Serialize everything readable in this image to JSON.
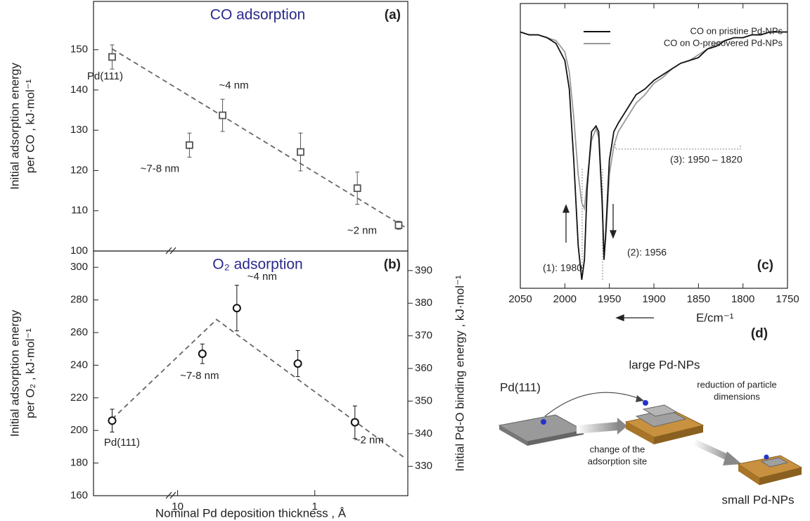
{
  "chart_data": [
    {
      "type": "scatter",
      "panel_label": "(a)",
      "title": "CO adsorption",
      "ylabel": [
        "Initial adsorption energy",
        "per CO , kJ·mol⁻¹"
      ],
      "x": [
        30,
        8.2,
        4.7,
        1.27,
        0.49,
        0.245
      ],
      "values": [
        148.2,
        126.3,
        133.7,
        124.6,
        115.6,
        106.4
      ],
      "errors": [
        3,
        3,
        4,
        4.7,
        4,
        1
      ],
      "marker": "square",
      "color": "#555555",
      "point_labels": [
        "Pd(111)",
        "~7-8 nm",
        "~4 nm",
        null,
        null,
        "~2 nm"
      ],
      "fit": {
        "x": [
          30,
          0.21
        ],
        "values": [
          150.2,
          105.5
        ]
      },
      "log_x": true,
      "xlim": [
        41,
        0.21
      ],
      "ylim": [
        100,
        162
      ],
      "yticks": [
        100,
        110,
        120,
        130,
        140,
        150
      ]
    },
    {
      "type": "scatter",
      "panel_label": "(b)",
      "title": "O₂ adsorption",
      "ylabel": [
        "Initial adsorption energy",
        "per O₂ , kJ·mol⁻¹"
      ],
      "y2label": "Initial Pd-O binding energy , kJ·mol⁻¹",
      "xlabel": "Nominal Pd deposition thickness , Å",
      "x": [
        30,
        6.6,
        3.7,
        1.33,
        0.51
      ],
      "values": [
        206,
        247,
        275,
        241,
        205
      ],
      "errors": [
        7,
        6,
        14,
        8,
        10
      ],
      "marker": "circle",
      "color": "#111111",
      "point_labels": [
        "Pd(111)",
        "~7-8 nm",
        "~4 nm",
        null,
        "~2 nm"
      ],
      "fit": {
        "x": [
          30,
          5.2,
          0.22
        ],
        "values": [
          207,
          268,
          183
        ]
      },
      "log_x": true,
      "xlim": [
        41,
        0.21
      ],
      "xticks": [
        10,
        1
      ],
      "ylim": [
        160,
        310
      ],
      "yticks": [
        160,
        180,
        200,
        220,
        240,
        260,
        280,
        300
      ],
      "y2lim": [
        321,
        396
      ],
      "y2ticks": [
        330,
        340,
        350,
        360,
        370,
        380,
        390
      ]
    },
    {
      "type": "line",
      "panel_label": "(c)",
      "xlabel": "E/cm⁻¹",
      "x": [
        2050,
        2040,
        2030,
        2020,
        2010,
        2000,
        1995,
        1990,
        1985,
        1981,
        1978,
        1975,
        1970,
        1965,
        1962,
        1958,
        1956,
        1954,
        1950,
        1945,
        1940,
        1930,
        1920,
        1910,
        1900,
        1890,
        1880,
        1870,
        1860,
        1850,
        1840,
        1830,
        1820,
        1810,
        1800,
        1790,
        1780,
        1770,
        1760,
        1750
      ],
      "series": [
        {
          "name": "CO on pristine Pd-NPs",
          "color": "#111111",
          "values": [
            90,
            89,
            89,
            88,
            86,
            80,
            70,
            45,
            15,
            3,
            10,
            35,
            55,
            57,
            55,
            30,
            10,
            20,
            45,
            55,
            58,
            63,
            68,
            70,
            73,
            75,
            77,
            79,
            80,
            81,
            84,
            85,
            87,
            88,
            88,
            89,
            89,
            90,
            90,
            90
          ]
        },
        {
          "name": "CO on O-precovered Pd-NPs",
          "color": "#999999",
          "values": [
            90,
            89,
            89,
            88,
            87,
            83,
            76,
            60,
            40,
            30,
            28,
            38,
            52,
            56,
            53,
            28,
            11,
            18,
            40,
            50,
            55,
            60,
            65,
            68,
            72,
            74,
            77,
            79,
            80,
            82,
            84,
            86,
            87,
            88,
            88,
            89,
            89,
            90,
            90,
            90
          ]
        }
      ],
      "annotations": [
        "(1): 1980",
        "(2): 1956",
        "(3): 1950 – 1820"
      ],
      "xlim": [
        2050,
        1750
      ],
      "ylim": [
        0,
        100
      ],
      "xticks": [
        2050,
        2000,
        1950,
        1900,
        1850,
        1800,
        1750
      ]
    }
  ],
  "diagram": {
    "label": "(d)",
    "texts": [
      "large Pd-NPs",
      "Pd(111)",
      "reduction of particle",
      "dimensions",
      "change of the",
      "adsorption site",
      "small Pd-NPs"
    ]
  }
}
